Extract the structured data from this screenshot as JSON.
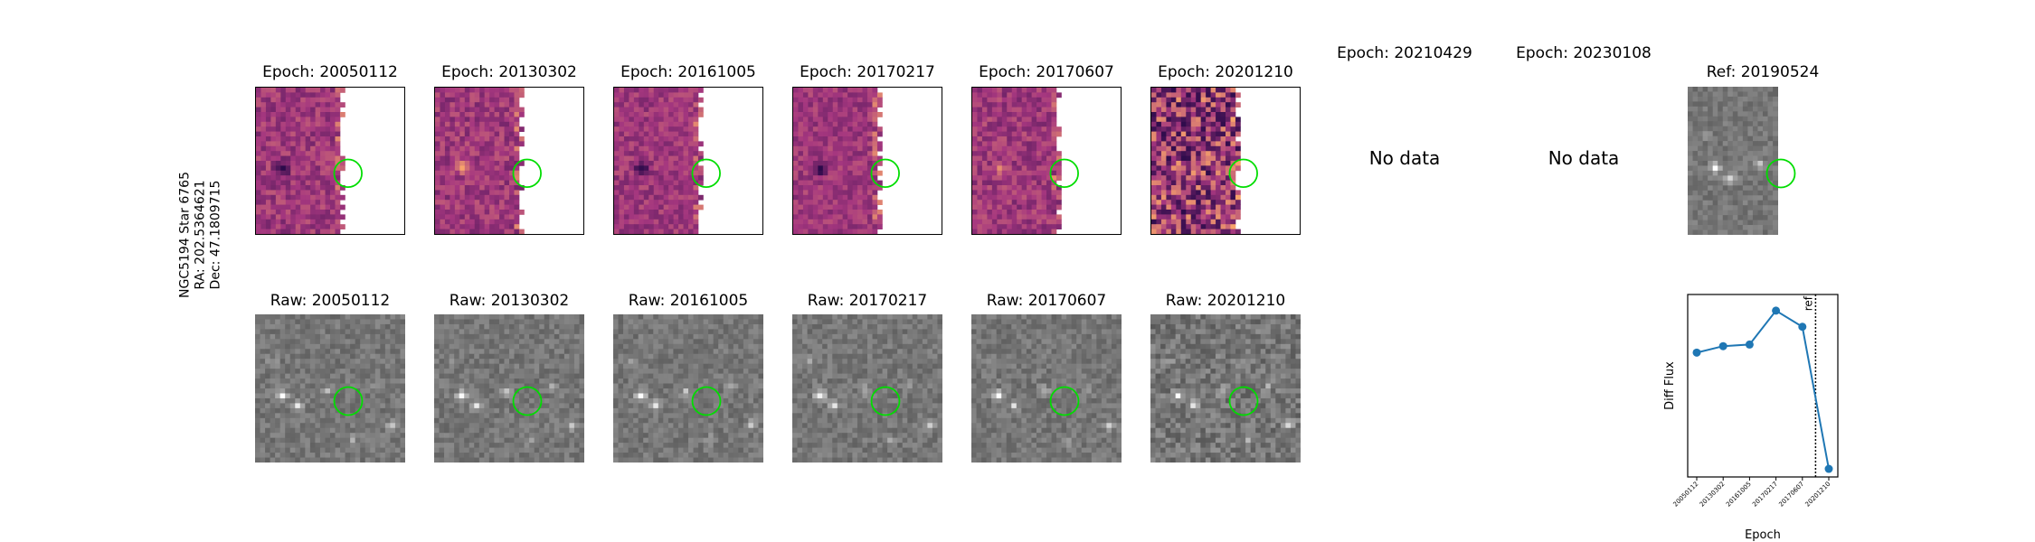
{
  "side_label": {
    "line1": "NGC5194 Star 6765",
    "line2": "RA: 202.5364621",
    "line3": "Dec: 47.1809715"
  },
  "diff_panels": [
    {
      "title": "Epoch: 20050112",
      "has_data": true
    },
    {
      "title": "Epoch: 20130302",
      "has_data": true
    },
    {
      "title": "Epoch: 20161005",
      "has_data": true
    },
    {
      "title": "Epoch: 20170217",
      "has_data": true
    },
    {
      "title": "Epoch: 20170607",
      "has_data": true
    },
    {
      "title": "Epoch: 20201210",
      "has_data": true
    },
    {
      "title": "Epoch: 20210429",
      "has_data": false,
      "message": "No data"
    },
    {
      "title": "Epoch: 20230108",
      "has_data": false,
      "message": "No data"
    }
  ],
  "ref_panel": {
    "title": "Ref: 20190524"
  },
  "raw_panels": [
    {
      "title": "Raw: 20050112"
    },
    {
      "title": "Raw: 20130302"
    },
    {
      "title": "Raw: 20161005"
    },
    {
      "title": "Raw: 20170217"
    },
    {
      "title": "Raw: 20170607"
    },
    {
      "title": "Raw: 20201210"
    }
  ],
  "colors": {
    "circle": "#00dd00",
    "series": "#1f77b4",
    "diff_low": "#2b0a4a",
    "diff_mid": "#a5377f",
    "diff_high": "#f7a36b"
  },
  "chart_data": {
    "type": "line",
    "title": "",
    "xlabel": "Epoch",
    "ylabel": "Diff Flux",
    "categories": [
      "20050112",
      "20130302",
      "20161005",
      "20170217",
      "20170607",
      "20201210"
    ],
    "values": [
      0.62,
      0.66,
      0.67,
      0.88,
      0.78,
      -0.1
    ],
    "ylim": [
      -0.15,
      0.98
    ],
    "ref_line": {
      "after_category_index": 4.5,
      "label": "ref"
    },
    "y_ticks_shown": false,
    "grid": false,
    "legend": "none"
  }
}
